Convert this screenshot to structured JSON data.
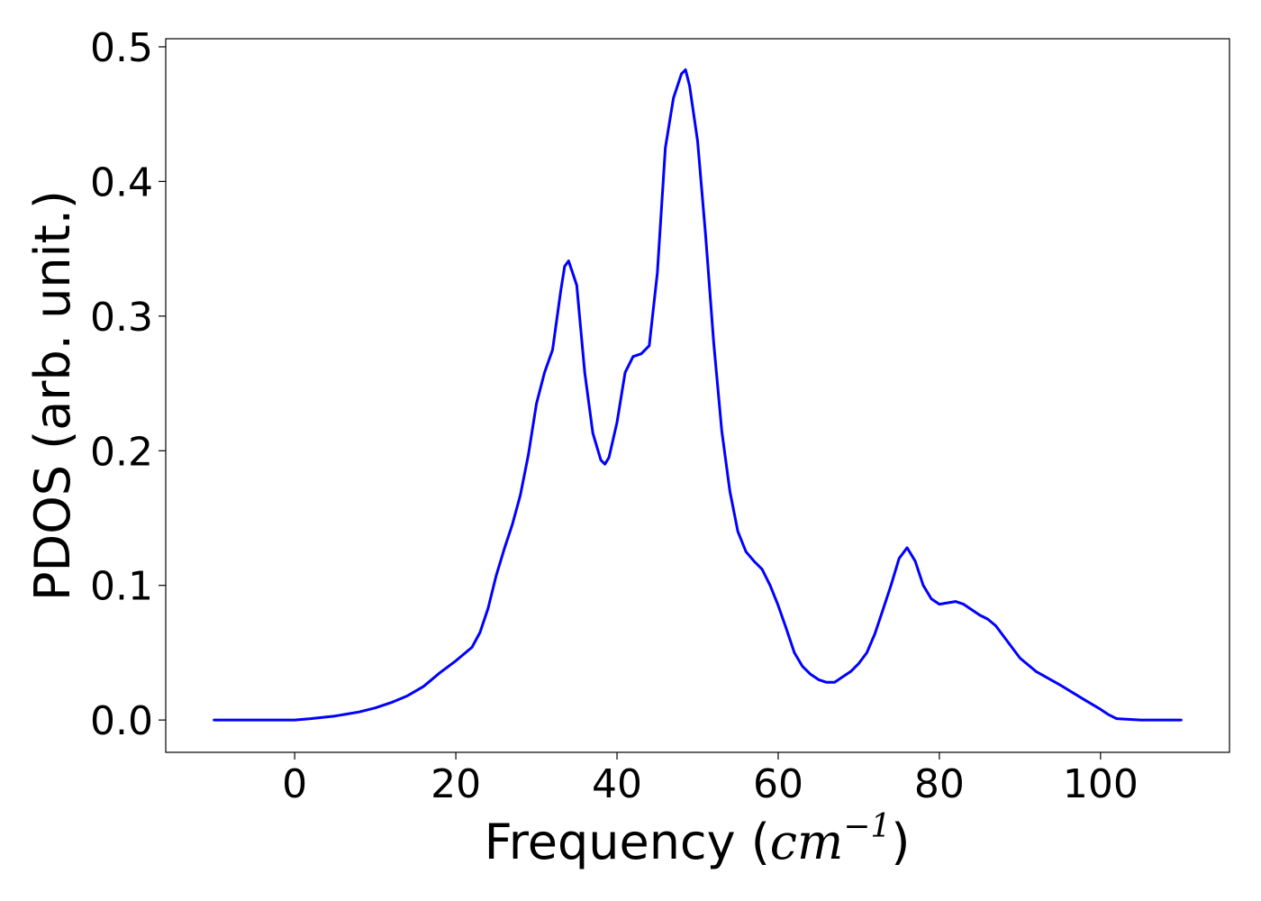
{
  "chart_data": {
    "type": "line",
    "title": "",
    "xlabel": "Frequency (",
    "xlabel_math_base": "cm",
    "xlabel_math_exp": "−1",
    "xlabel_close": ")",
    "ylabel": "PDOS (arb. unit.)",
    "xlim": [
      -16,
      116
    ],
    "ylim": [
      -0.024,
      0.506
    ],
    "xticks": [
      0,
      20,
      40,
      60,
      80,
      100
    ],
    "xtick_labels": [
      "0",
      "20",
      "40",
      "60",
      "80",
      "100"
    ],
    "yticks": [
      0.0,
      0.1,
      0.2,
      0.3,
      0.4,
      0.5
    ],
    "ytick_labels": [
      "0.0",
      "0.1",
      "0.2",
      "0.3",
      "0.4",
      "0.5"
    ],
    "grid": false,
    "legend": "none",
    "line_color": "#0000ff",
    "series": [
      {
        "x": [
          -10,
          -5,
          0,
          2,
          5,
          8,
          10,
          12,
          14,
          16,
          18,
          20,
          22,
          23,
          24,
          25,
          26,
          27,
          28,
          29,
          30,
          31,
          32,
          33,
          33.5,
          34,
          35,
          36,
          37,
          38,
          38.5,
          39,
          40,
          41,
          42,
          43,
          44,
          45,
          46,
          47,
          48,
          48.5,
          49,
          50,
          51,
          52,
          53,
          54,
          55,
          56,
          57,
          58,
          59,
          60,
          61,
          62,
          63,
          64,
          65,
          66,
          67,
          68,
          69,
          70,
          71,
          72,
          73,
          74,
          75,
          76,
          77,
          78,
          79,
          80,
          81,
          82,
          83,
          84,
          85,
          86,
          87,
          88,
          90,
          92,
          95,
          98,
          100,
          101,
          102,
          105,
          110
        ],
        "y": [
          0.0,
          0.0,
          0.0,
          0.001,
          0.003,
          0.006,
          0.009,
          0.013,
          0.018,
          0.025,
          0.035,
          0.044,
          0.054,
          0.065,
          0.083,
          0.107,
          0.127,
          0.145,
          0.167,
          0.197,
          0.235,
          0.258,
          0.275,
          0.318,
          0.337,
          0.341,
          0.323,
          0.258,
          0.213,
          0.193,
          0.19,
          0.195,
          0.221,
          0.258,
          0.27,
          0.272,
          0.278,
          0.332,
          0.425,
          0.462,
          0.48,
          0.483,
          0.471,
          0.43,
          0.36,
          0.28,
          0.215,
          0.17,
          0.14,
          0.125,
          0.118,
          0.112,
          0.1,
          0.085,
          0.068,
          0.05,
          0.04,
          0.034,
          0.03,
          0.028,
          0.028,
          0.032,
          0.036,
          0.042,
          0.05,
          0.064,
          0.082,
          0.1,
          0.12,
          0.128,
          0.118,
          0.1,
          0.09,
          0.086,
          0.087,
          0.088,
          0.086,
          0.082,
          0.078,
          0.075,
          0.07,
          0.062,
          0.046,
          0.036,
          0.026,
          0.015,
          0.008,
          0.004,
          0.001,
          0.0,
          0.0
        ]
      }
    ]
  }
}
